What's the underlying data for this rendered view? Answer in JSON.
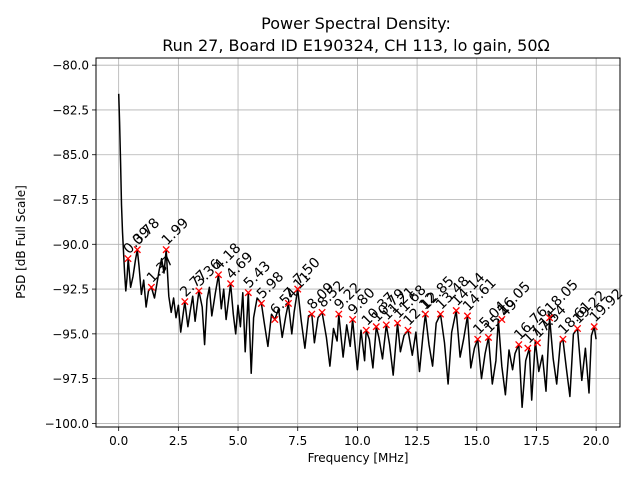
{
  "chart_data": {
    "type": "line",
    "title": "Power Spectral Density:",
    "subtitle": "Run 27, Board ID E190324, CH 113, lo gain, 50Ω",
    "xlabel": "Frequency [MHz]",
    "ylabel": "PSD [dB Full Scale]",
    "xlim": [
      -0.95,
      21.0
    ],
    "ylim": [
      -100.2,
      -79.6
    ],
    "xticks": [
      0.0,
      2.5,
      5.0,
      7.5,
      10.0,
      12.5,
      15.0,
      17.5,
      20.0
    ],
    "xtick_labels": [
      "0.0",
      "2.5",
      "5.0",
      "7.5",
      "10.0",
      "12.5",
      "15.0",
      "17.5",
      "20.0"
    ],
    "yticks": [
      -80.0,
      -82.5,
      -85.0,
      -87.5,
      -90.0,
      -92.5,
      -95.0,
      -97.5,
      -100.0
    ],
    "ytick_labels": [
      "−80.0",
      "−82.5",
      "−85.0",
      "−87.5",
      "−90.0",
      "−92.5",
      "−95.0",
      "−97.5",
      "−100.0"
    ],
    "grid": true,
    "line_color": "#000000",
    "marker_color": "#ff0000",
    "series": [
      {
        "x": [
          0.0,
          0.04,
          0.08,
          0.12,
          0.16,
          0.2,
          0.25,
          0.3,
          0.35,
          0.4,
          0.5,
          0.6,
          0.7,
          0.78,
          0.85,
          0.95,
          1.05,
          1.15,
          1.25,
          1.37,
          1.5,
          1.6,
          1.7,
          1.8,
          1.9,
          1.99,
          2.1,
          2.2,
          2.3,
          2.4,
          2.5,
          2.6,
          2.77,
          2.9,
          3.0,
          3.1,
          3.2,
          3.36,
          3.5,
          3.6,
          3.7,
          3.8,
          3.9,
          4.05,
          4.18,
          4.3,
          4.4,
          4.5,
          4.69,
          4.8,
          4.9,
          5.0,
          5.1,
          5.2,
          5.3,
          5.43,
          5.55,
          5.65,
          5.8,
          5.98,
          6.1,
          6.25,
          6.4,
          6.54,
          6.7,
          6.85,
          7.0,
          7.11,
          7.25,
          7.35,
          7.5,
          7.65,
          7.8,
          7.95,
          8.09,
          8.2,
          8.35,
          8.52,
          8.7,
          8.85,
          9.0,
          9.15,
          9.22,
          9.4,
          9.55,
          9.7,
          9.8,
          10.0,
          10.15,
          10.3,
          10.37,
          10.5,
          10.65,
          10.79,
          10.9,
          11.05,
          11.21,
          11.35,
          11.5,
          11.68,
          11.8,
          11.95,
          12.12,
          12.3,
          12.45,
          12.6,
          12.75,
          12.85,
          13.0,
          13.15,
          13.3,
          13.48,
          13.65,
          13.8,
          13.95,
          14.14,
          14.3,
          14.45,
          14.61,
          14.75,
          14.9,
          15.04,
          15.2,
          15.35,
          15.49,
          15.65,
          15.8,
          15.9,
          16.05,
          16.2,
          16.35,
          16.5,
          16.6,
          16.76,
          16.9,
          17.05,
          17.2,
          17.3,
          17.45,
          17.6,
          17.75,
          17.9,
          18.05,
          18.2,
          18.35,
          18.5,
          18.61,
          18.75,
          18.9,
          19.05,
          19.22,
          19.4,
          19.55,
          19.7,
          19.8,
          19.92,
          20.0
        ],
        "y": [
          -81.6,
          -83.2,
          -85.5,
          -87.8,
          -89.3,
          -90.4,
          -91.6,
          -92.6,
          -91.9,
          -90.8,
          -92.4,
          -91.8,
          -90.9,
          -90.3,
          -91.2,
          -92.8,
          -92.0,
          -93.5,
          -92.6,
          -92.4,
          -93.0,
          -92.2,
          -91.4,
          -90.8,
          -91.6,
          -90.3,
          -92.9,
          -93.8,
          -93.0,
          -94.1,
          -93.4,
          -94.9,
          -93.2,
          -94.6,
          -93.7,
          -92.9,
          -94.3,
          -92.6,
          -93.5,
          -95.6,
          -93.1,
          -92.4,
          -94.0,
          -92.7,
          -91.7,
          -93.6,
          -92.5,
          -94.2,
          -92.2,
          -93.9,
          -95.0,
          -93.4,
          -94.6,
          -92.7,
          -96.0,
          -92.7,
          -97.2,
          -94.1,
          -93.0,
          -93.3,
          -94.4,
          -95.7,
          -93.9,
          -94.2,
          -93.6,
          -95.2,
          -94.0,
          -93.3,
          -95.0,
          -93.8,
          -92.5,
          -94.3,
          -95.8,
          -94.0,
          -93.9,
          -95.5,
          -94.1,
          -93.8,
          -95.2,
          -96.8,
          -94.7,
          -95.4,
          -93.9,
          -96.3,
          -94.5,
          -95.7,
          -94.2,
          -97.0,
          -94.8,
          -96.5,
          -94.8,
          -95.3,
          -96.9,
          -94.6,
          -95.2,
          -96.4,
          -94.5,
          -95.6,
          -97.3,
          -94.4,
          -96.0,
          -95.1,
          -94.8,
          -96.2,
          -94.9,
          -97.1,
          -95.0,
          -93.9,
          -95.6,
          -96.8,
          -94.4,
          -93.9,
          -95.5,
          -97.8,
          -94.9,
          -93.7,
          -96.3,
          -95.3,
          -94.0,
          -96.9,
          -95.8,
          -95.3,
          -97.5,
          -96.1,
          -95.2,
          -97.8,
          -96.5,
          -94.2,
          -96.8,
          -98.4,
          -95.9,
          -97.0,
          -96.1,
          -95.6,
          -99.1,
          -96.5,
          -95.8,
          -98.7,
          -95.4,
          -97.1,
          -96.2,
          -98.2,
          -94.1,
          -96.4,
          -97.8,
          -95.5,
          -95.3,
          -96.9,
          -98.5,
          -95.0,
          -94.7,
          -97.6,
          -95.8,
          -98.3,
          -95.1,
          -94.6,
          -95.3
        ]
      }
    ],
    "peaks": [
      {
        "x": 0.39,
        "y": -90.8,
        "label": "0.39"
      },
      {
        "x": 0.78,
        "y": -90.3,
        "label": "0.78"
      },
      {
        "x": 1.37,
        "y": -92.4,
        "label": "1.37"
      },
      {
        "x": 1.99,
        "y": -90.3,
        "label": "1.99"
      },
      {
        "x": 2.77,
        "y": -93.2,
        "label": "2.77"
      },
      {
        "x": 3.36,
        "y": -92.6,
        "label": "3.36"
      },
      {
        "x": 4.18,
        "y": -91.7,
        "label": "4.18"
      },
      {
        "x": 4.69,
        "y": -92.2,
        "label": "4.69"
      },
      {
        "x": 5.43,
        "y": -92.7,
        "label": "5.43"
      },
      {
        "x": 5.98,
        "y": -93.3,
        "label": "5.98"
      },
      {
        "x": 6.54,
        "y": -94.2,
        "label": "6.54"
      },
      {
        "x": 7.11,
        "y": -93.3,
        "label": "7.11"
      },
      {
        "x": 7.5,
        "y": -92.5,
        "label": "7.50"
      },
      {
        "x": 8.09,
        "y": -93.9,
        "label": "8.09"
      },
      {
        "x": 8.52,
        "y": -93.8,
        "label": "8.52"
      },
      {
        "x": 9.22,
        "y": -93.9,
        "label": "9.22"
      },
      {
        "x": 9.8,
        "y": -94.2,
        "label": "9.80"
      },
      {
        "x": 10.37,
        "y": -94.8,
        "label": "10.37"
      },
      {
        "x": 10.79,
        "y": -94.6,
        "label": "10.79"
      },
      {
        "x": 11.21,
        "y": -94.5,
        "label": "11.21"
      },
      {
        "x": 11.68,
        "y": -94.4,
        "label": "11.68"
      },
      {
        "x": 12.12,
        "y": -94.8,
        "label": "12.12"
      },
      {
        "x": 12.85,
        "y": -93.9,
        "label": "12.85"
      },
      {
        "x": 13.48,
        "y": -93.9,
        "label": "13.48"
      },
      {
        "x": 14.14,
        "y": -93.7,
        "label": "14.14"
      },
      {
        "x": 14.61,
        "y": -94.0,
        "label": "14.61"
      },
      {
        "x": 15.04,
        "y": -95.3,
        "label": "15.04"
      },
      {
        "x": 15.49,
        "y": -95.2,
        "label": "15.49"
      },
      {
        "x": 16.05,
        "y": -94.2,
        "label": "16.05"
      },
      {
        "x": 16.76,
        "y": -95.6,
        "label": "16.76"
      },
      {
        "x": 17.14,
        "y": -95.8,
        "label": "17.14"
      },
      {
        "x": 17.54,
        "y": -95.5,
        "label": "17.54"
      },
      {
        "x": 18.05,
        "y": -94.1,
        "label": "18.05"
      },
      {
        "x": 18.61,
        "y": -95.3,
        "label": "18.61"
      },
      {
        "x": 19.22,
        "y": -94.7,
        "label": "19.22"
      },
      {
        "x": 19.92,
        "y": -94.6,
        "label": "19.92"
      }
    ]
  }
}
